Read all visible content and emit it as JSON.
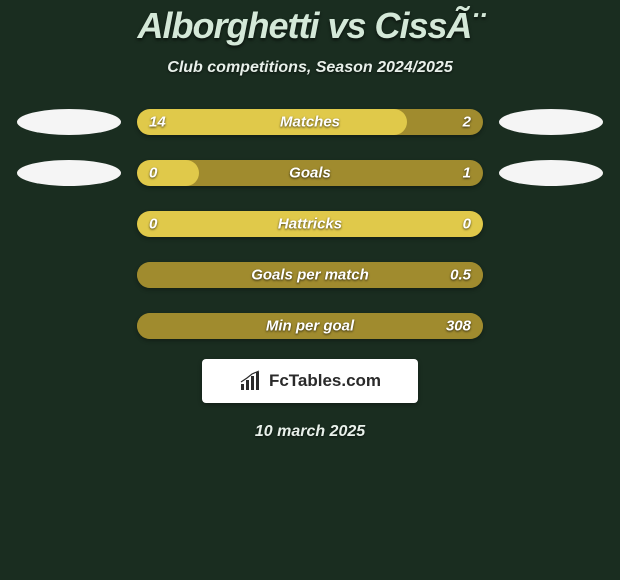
{
  "header": {
    "title": "Alborghetti vs CissÃ¨",
    "subtitle": "Club competitions, Season 2024/2025"
  },
  "stats": [
    {
      "label": "Matches",
      "left_value": "14",
      "right_value": "2",
      "left_pct": 78,
      "bar_left_color": "#e0c94a",
      "bar_right_color": "#a08b2e",
      "show_left_ellipse": true,
      "show_right_ellipse": true
    },
    {
      "label": "Goals",
      "left_value": "0",
      "right_value": "1",
      "left_pct": 18,
      "bar_left_color": "#e0c94a",
      "bar_right_color": "#a08b2e",
      "show_left_ellipse": true,
      "show_right_ellipse": true
    },
    {
      "label": "Hattricks",
      "left_value": "0",
      "right_value": "0",
      "left_pct": 100,
      "bar_left_color": "#e0c94a",
      "bar_right_color": "#a08b2e",
      "show_left_ellipse": false,
      "show_right_ellipse": false
    },
    {
      "label": "Goals per match",
      "left_value": "",
      "right_value": "0.5",
      "left_pct": 100,
      "bar_left_color": "#a08b2e",
      "bar_right_color": "#a08b2e",
      "show_left_ellipse": false,
      "show_right_ellipse": false
    },
    {
      "label": "Min per goal",
      "left_value": "",
      "right_value": "308",
      "left_pct": 100,
      "bar_left_color": "#a08b2e",
      "bar_right_color": "#a08b2e",
      "show_left_ellipse": false,
      "show_right_ellipse": false
    }
  ],
  "branding": {
    "logo_text": "FcTables.com"
  },
  "footer": {
    "date": "10 march 2025"
  },
  "colors": {
    "background": "#1a2d20",
    "title_color": "#d4e8d8",
    "ellipse_color": "#f5f5f5"
  }
}
